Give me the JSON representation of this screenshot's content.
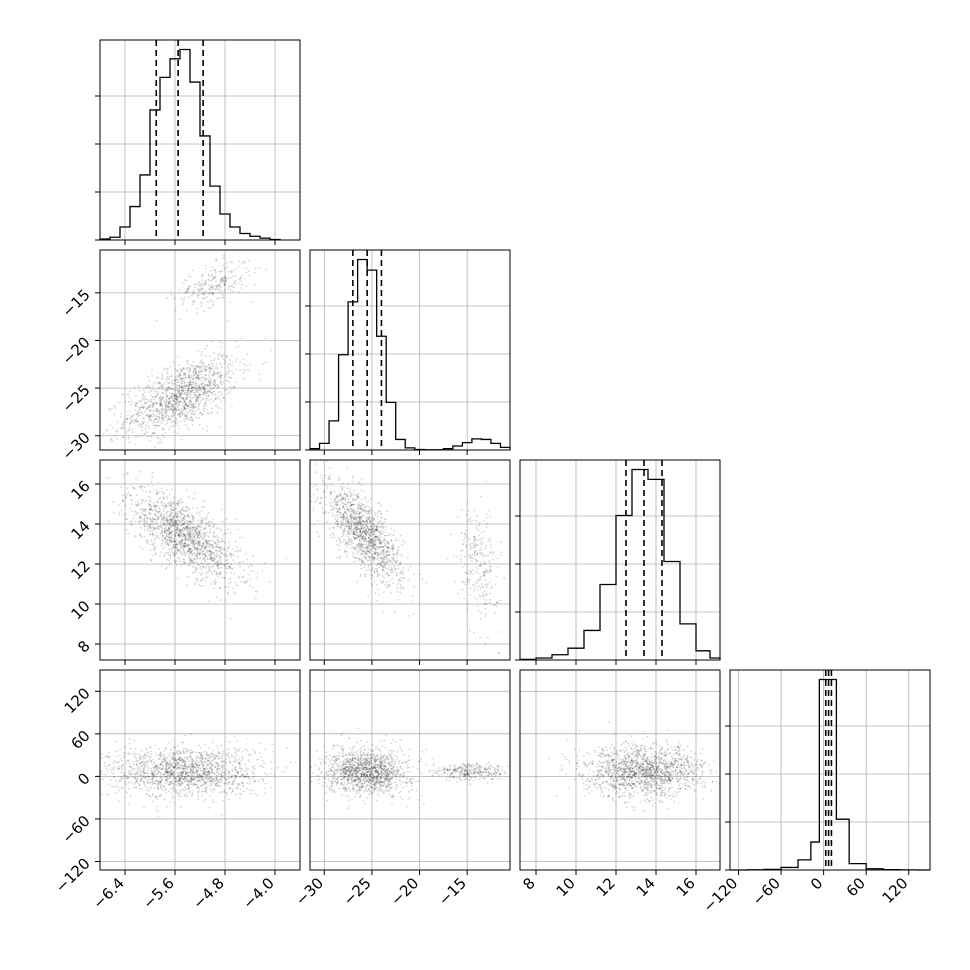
{
  "chart_data": {
    "type": "scatter",
    "variant": "corner-plot",
    "grid": true,
    "params": [
      {
        "range": [
          -6.8,
          -3.6
        ],
        "ticks": [
          -6.4,
          -5.6,
          -4.8,
          -4.0
        ],
        "tick_labels": [
          "−6.4",
          "−5.6",
          "−4.8",
          "−4.0"
        ]
      },
      {
        "range": [
          -31.5,
          -10.5
        ],
        "ticks": [
          -30,
          -25,
          -20,
          -15
        ],
        "tick_labels": [
          "−30",
          "−25",
          "−20",
          "−15"
        ]
      },
      {
        "range": [
          7.2,
          17.2
        ],
        "ticks": [
          8,
          10,
          12,
          14,
          16
        ],
        "tick_labels": [
          "8",
          "10",
          "12",
          "14",
          "16"
        ]
      },
      {
        "range": [
          -132,
          150
        ],
        "ticks": [
          -120,
          -60,
          0,
          60,
          120
        ],
        "tick_labels": [
          "−120",
          "−60",
          "0",
          "60",
          "120"
        ]
      }
    ],
    "quantiles": [
      [
        -5.9,
        -5.55,
        -5.15
      ],
      [
        -27.0,
        -25.5,
        -24.0
      ],
      [
        12.5,
        13.4,
        14.3
      ],
      [
        3.0,
        7.0,
        11.0
      ]
    ],
    "histograms": [
      {
        "x": [
          -6.72,
          -6.56,
          -6.4,
          -6.24,
          -6.08,
          -5.92,
          -5.76,
          -5.6,
          -5.44,
          -5.28,
          -5.12,
          -4.96,
          -4.8,
          -4.64,
          -4.48,
          -4.32,
          -4.16,
          -4.0
        ],
        "counts": [
          1,
          3,
          14,
          36,
          70,
          140,
          175,
          195,
          205,
          170,
          112,
          58,
          28,
          14,
          7,
          4,
          2,
          0.5
        ]
      },
      {
        "x": [
          -31.0,
          -30.0,
          -29.0,
          -28.0,
          -27.0,
          -26.0,
          -25.0,
          -24.0,
          -23.0,
          -22.0,
          -21.0,
          -20.0,
          -19.0,
          -18.0,
          -17.0,
          -16.0,
          -15.0,
          -14.0,
          -13.0,
          -12.0,
          -11.0
        ],
        "counts": [
          5,
          25,
          110,
          360,
          560,
          720,
          680,
          430,
          180,
          40,
          8,
          2,
          1,
          1,
          5,
          15,
          28,
          42,
          40,
          25,
          10
        ]
      },
      {
        "x": [
          7.6,
          8.4,
          9.2,
          10.0,
          10.8,
          11.6,
          12.4,
          13.2,
          14.0,
          14.8,
          15.6,
          16.4,
          17.0
        ],
        "counts": [
          1,
          3,
          8,
          18,
          45,
          115,
          220,
          290,
          275,
          150,
          55,
          14,
          3
        ]
      },
      {
        "x": [
          -120,
          -96,
          -72,
          -48,
          -24,
          -12,
          0,
          12,
          24,
          48,
          72,
          96,
          120,
          144
        ],
        "counts": [
          0,
          0.2,
          0.5,
          2,
          8,
          22,
          150,
          150,
          40,
          5,
          1,
          0.3,
          0.1,
          0
        ]
      }
    ],
    "clouds": [
      {
        "i": 0,
        "j": 1,
        "mean": [
          -5.5,
          -25.8
        ],
        "sd": [
          0.45,
          2.1
        ],
        "rho": 0.6,
        "n": 1300,
        "secondary": {
          "mean": [
            -5.0,
            -14.2
          ],
          "sd": [
            0.3,
            1.2
          ],
          "rho": 0.5,
          "n": 260
        }
      },
      {
        "i": 0,
        "j": 2,
        "mean": [
          -5.45,
          13.4
        ],
        "sd": [
          0.45,
          1.15
        ],
        "rho": -0.7,
        "n": 1500
      },
      {
        "i": 1,
        "j": 2,
        "mean": [
          -25.8,
          13.5
        ],
        "sd": [
          2.0,
          1.2
        ],
        "rho": -0.7,
        "n": 1300,
        "secondary": {
          "mean": [
            -13.8,
            12.0
          ],
          "sd": [
            1.1,
            1.4
          ],
          "rho": -0.3,
          "n": 260
        }
      },
      {
        "i": 0,
        "j": 3,
        "mean": [
          -5.45,
          7.0
        ],
        "sd": [
          0.6,
          18
        ],
        "rho": 0.0,
        "n": 1500
      },
      {
        "i": 1,
        "j": 3,
        "mean": [
          -25.5,
          7.0
        ],
        "sd": [
          2.2,
          16
        ],
        "rho": 0.0,
        "n": 1300,
        "secondary": {
          "mean": [
            -14.5,
            6.0
          ],
          "sd": [
            2.0,
            6
          ],
          "rho": 0.0,
          "n": 300
        }
      },
      {
        "i": 2,
        "j": 3,
        "mean": [
          13.4,
          7.0
        ],
        "sd": [
          1.5,
          18
        ],
        "rho": 0.0,
        "n": 1500
      }
    ]
  }
}
